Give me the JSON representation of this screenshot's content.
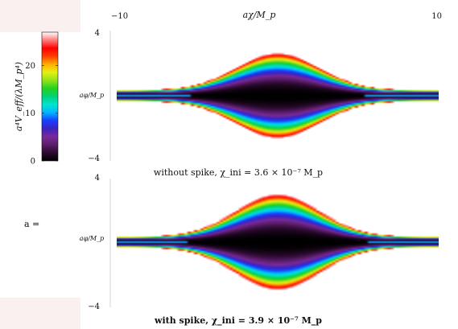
{
  "chart_data": [
    {
      "type": "heatmap",
      "title": "without spike, χ_ini = 3.6 × 10⁻⁷ M_p",
      "xlabel": "aχ/M_p",
      "ylabel": "aφ/M_p",
      "xlim": [
        -10,
        10
      ],
      "ylim": [
        -4,
        4
      ],
      "x_ticks": [
        "−10",
        "10"
      ],
      "y_ticks": [
        "4",
        "−4"
      ],
      "colorbar_label": "a⁴V_eff/(λM_p⁴)",
      "colorbar_range": [
        0,
        27
      ],
      "colorbar_ticks": [
        "0",
        "10",
        "20"
      ],
      "band": {
        "center_halfwidth": 0.3,
        "edge_halfwidth": 0.35,
        "peak_halfwidth": 2.6,
        "peak_width": 2.6,
        "outer_value": 26
      }
    },
    {
      "type": "heatmap",
      "title": "with spike, χ_ini = 3.9 × 10⁻⁷ M_p",
      "xlabel": "aχ/M_p",
      "ylabel": "aφ/M_p",
      "xlim": [
        -10,
        10
      ],
      "ylim": [
        -4,
        4
      ],
      "x_ticks": [
        "−10",
        "10"
      ],
      "y_ticks": [
        "4",
        "−4"
      ],
      "band": {
        "center_halfwidth": 0.3,
        "edge_halfwidth": 0.35,
        "peak_halfwidth": 3.0,
        "peak_width": 2.6,
        "outer_value": 26
      }
    }
  ],
  "side_label": "a =",
  "colormap": [
    "#000000",
    "#2a0a2e",
    "#5a1d6a",
    "#7a2a9a",
    "#3a23c0",
    "#1a3dff",
    "#00b4ff",
    "#00e5d0",
    "#00d27a",
    "#22d21f",
    "#8fe21a",
    "#e6f014",
    "#ffb000",
    "#ff4000",
    "#ff0000",
    "#ff7a7a",
    "#ffffff"
  ]
}
